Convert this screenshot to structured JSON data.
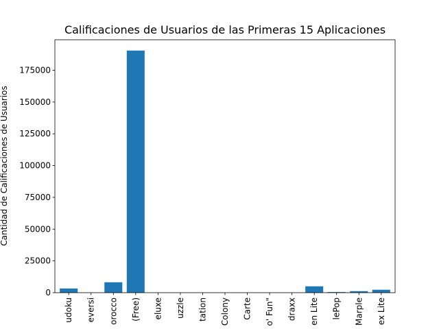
{
  "chart_data": {
    "type": "bar",
    "title": "Calificaciones de Usuarios de las Primeras 15 Aplicaciones",
    "xlabel": "",
    "ylabel": "Cantidad de Calificaciones de Usuarios",
    "categories": [
      "udoku",
      "eversi",
      "orocco",
      "(Free)",
      "eluxe",
      "uzzle",
      "tation",
      "Colony",
      "Carte",
      "o' Fun\"",
      "draxx",
      "en Lite",
      "lePop",
      "Marple",
      "ex Lite"
    ],
    "values": [
      3300,
      0,
      8200,
      190500,
      0,
      0,
      0,
      0,
      0,
      0,
      0,
      5000,
      500,
      1200,
      2300
    ],
    "ylim": [
      0,
      199000
    ],
    "yticks": [
      0,
      25000,
      50000,
      75000,
      100000,
      125000,
      150000,
      175000
    ],
    "bar_color": "#1f77b4",
    "grid": false
  }
}
